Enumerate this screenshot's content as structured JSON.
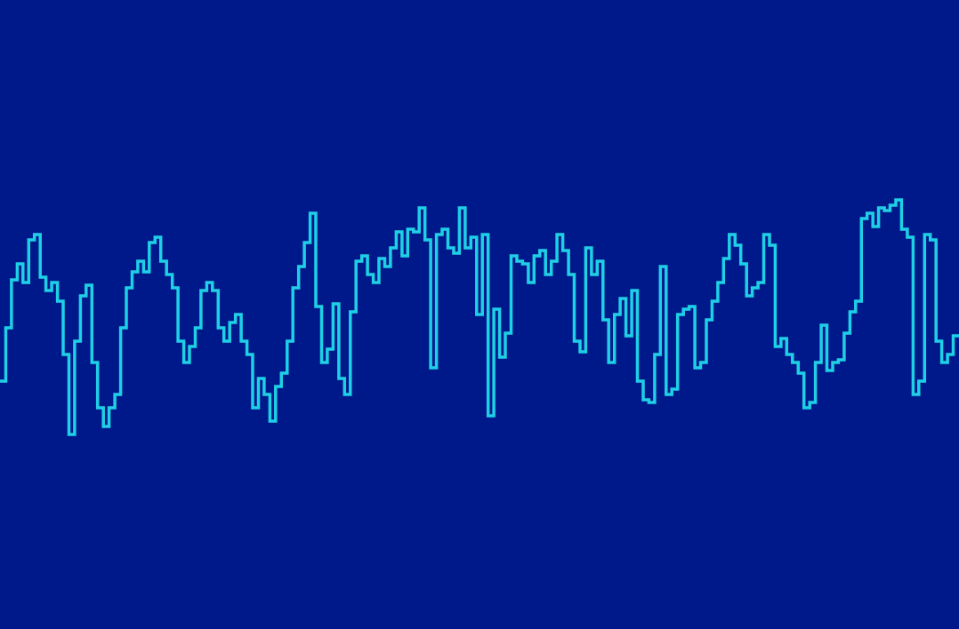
{
  "colors": {
    "background": "#00198A",
    "waveform": "#1ECFE6"
  },
  "waveform": {
    "type": "step",
    "y_range": [
      -1,
      1
    ],
    "samples": [
      -0.25,
      -0.05,
      0.13,
      0.19,
      0.12,
      0.28,
      0.3,
      0.14,
      0.09,
      0.12,
      0.05,
      -0.15,
      -0.45,
      -0.1,
      0.07,
      0.11,
      -0.18,
      -0.35,
      -0.42,
      -0.35,
      -0.3,
      -0.05,
      0.1,
      0.16,
      0.2,
      0.16,
      0.27,
      0.29,
      0.2,
      0.15,
      0.1,
      -0.1,
      -0.18,
      -0.12,
      -0.05,
      0.09,
      0.12,
      0.09,
      -0.05,
      -0.1,
      -0.03,
      0.0,
      -0.1,
      -0.15,
      -0.35,
      -0.24,
      -0.3,
      -0.4,
      -0.27,
      -0.22,
      -0.1,
      0.1,
      0.18,
      0.27,
      0.38,
      0.03,
      -0.18,
      -0.13,
      0.04,
      -0.24,
      -0.3,
      0.01,
      0.2,
      0.22,
      0.15,
      0.12,
      0.21,
      0.18,
      0.25,
      0.31,
      0.22,
      0.32,
      0.31,
      0.4,
      0.28,
      -0.2,
      0.3,
      0.32,
      0.25,
      0.23,
      0.4,
      0.25,
      0.29,
      0.0,
      0.3,
      -0.38,
      0.02,
      -0.16,
      -0.07,
      0.22,
      0.2,
      0.19,
      0.12,
      0.22,
      0.24,
      0.15,
      0.2,
      0.3,
      0.24,
      0.15,
      -0.1,
      -0.14,
      0.25,
      0.15,
      0.2,
      -0.02,
      -0.18,
      0.0,
      0.06,
      -0.08,
      0.09,
      -0.25,
      -0.32,
      -0.33,
      -0.15,
      0.18,
      -0.3,
      -0.28,
      0.0,
      0.02,
      0.03,
      -0.2,
      -0.18,
      -0.02,
      0.05,
      0.12,
      0.21,
      0.3,
      0.26,
      0.19,
      0.07,
      0.1,
      0.12,
      0.3,
      0.26,
      -0.12,
      -0.09,
      -0.15,
      -0.18,
      -0.22,
      -0.35,
      -0.33,
      -0.18,
      -0.04,
      -0.21,
      -0.18,
      -0.17,
      -0.07,
      0.01,
      0.05,
      0.36,
      0.38,
      0.33,
      0.4,
      0.39,
      0.41,
      0.43,
      0.32,
      0.29,
      -0.3,
      -0.25,
      0.3,
      0.28,
      -0.1,
      -0.18,
      -0.15,
      -0.08
    ]
  }
}
